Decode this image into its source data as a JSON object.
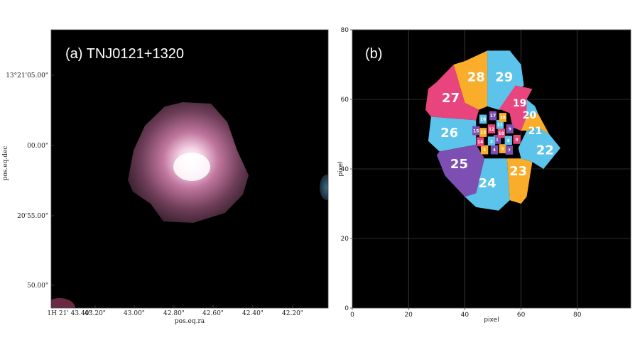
{
  "panel_a": {
    "label": "(a) TNJ0121+1320",
    "xlabel": "pos.eq.ra",
    "ylabel": "pos.eq.dec",
    "x_ticks": [
      "1H 21' 43.40\"",
      "43.20\"",
      "43.00\"",
      "42.80\"",
      "42.60\"",
      "42.40\"",
      "42.20\""
    ],
    "y_ticks": [
      "13°21'05.00\"",
      "00.00\"",
      "20'55.00\"",
      "50.00\""
    ]
  },
  "panel_b": {
    "label": "(b)",
    "xlabel": "pixel",
    "ylabel": "pixel",
    "x_ticks": [
      "0",
      "20",
      "40",
      "60",
      "80"
    ],
    "y_ticks": [
      "0",
      "20",
      "40",
      "60",
      "80"
    ]
  },
  "chart_data": {
    "type": "heatmap",
    "xlabel": "pixel",
    "ylabel": "pixel",
    "xlim": [
      0,
      99
    ],
    "ylim": [
      0,
      80
    ],
    "grid": true,
    "colors": {
      "pink": "#e8457e",
      "orange": "#f9ad2a",
      "blue": "#5cc3ea",
      "purple": "#7e4fb2"
    },
    "segments": [
      {
        "id": "1",
        "x": 51.5,
        "y": 48.5,
        "color": "purple"
      },
      {
        "id": "2",
        "x": 49.5,
        "y": 48.0,
        "color": "blue"
      },
      {
        "id": "3",
        "x": 47.0,
        "y": 45.5,
        "color": "orange"
      },
      {
        "id": "4",
        "x": 50.5,
        "y": 45.5,
        "color": "purple"
      },
      {
        "id": "5",
        "x": 53.5,
        "y": 45.8,
        "color": "orange"
      },
      {
        "id": "6",
        "x": 55.5,
        "y": 48.2,
        "color": "blue"
      },
      {
        "id": "7",
        "x": 55.8,
        "y": 45.4,
        "color": "purple"
      },
      {
        "id": "8",
        "x": 58.5,
        "y": 48.5,
        "color": "pink"
      },
      {
        "id": "9",
        "x": 56.0,
        "y": 51.5,
        "color": "purple"
      },
      {
        "id": "10",
        "x": 53.0,
        "y": 50.2,
        "color": "pink"
      },
      {
        "id": "11",
        "x": 52.5,
        "y": 52.8,
        "color": "blue"
      },
      {
        "id": "12",
        "x": 49.5,
        "y": 51.5,
        "color": "pink"
      },
      {
        "id": "13",
        "x": 46.5,
        "y": 50.5,
        "color": "orange"
      },
      {
        "id": "14",
        "x": 45.5,
        "y": 47.8,
        "color": "pink"
      },
      {
        "id": "15",
        "x": 44.0,
        "y": 51.0,
        "color": "purple"
      },
      {
        "id": "16",
        "x": 46.5,
        "y": 54.3,
        "color": "blue"
      },
      {
        "id": "17",
        "x": 50.0,
        "y": 55.3,
        "color": "purple"
      },
      {
        "id": "18",
        "x": 53.5,
        "y": 54.8,
        "color": "orange"
      },
      {
        "id": "19",
        "x": 59.5,
        "y": 59.0,
        "color": "pink"
      },
      {
        "id": "20",
        "x": 63.0,
        "y": 55.5,
        "color": "blue"
      },
      {
        "id": "21",
        "x": 65.0,
        "y": 51.0,
        "color": "orange"
      },
      {
        "id": "22",
        "x": 68.5,
        "y": 45.5,
        "color": "blue"
      },
      {
        "id": "23",
        "x": 59.0,
        "y": 39.5,
        "color": "orange"
      },
      {
        "id": "24",
        "x": 48.0,
        "y": 36.0,
        "color": "blue"
      },
      {
        "id": "25",
        "x": 38.0,
        "y": 41.5,
        "color": "purple"
      },
      {
        "id": "26",
        "x": 34.5,
        "y": 50.5,
        "color": "blue"
      },
      {
        "id": "27",
        "x": 35.0,
        "y": 60.5,
        "color": "pink"
      },
      {
        "id": "28",
        "x": 44.0,
        "y": 66.5,
        "color": "orange"
      },
      {
        "id": "29",
        "x": 54.0,
        "y": 66.5,
        "color": "blue"
      }
    ]
  }
}
